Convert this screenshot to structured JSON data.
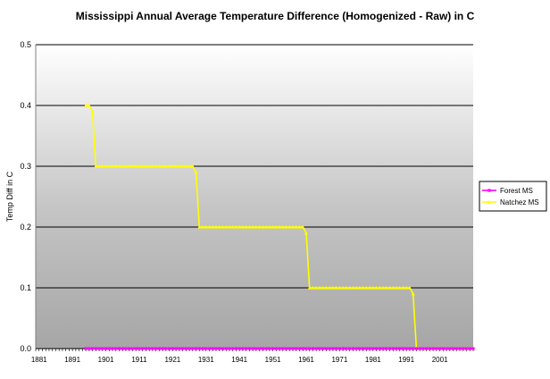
{
  "chart_data": {
    "type": "line",
    "title": "Mississippi Annual Average Temperature Difference (Homogenized - Raw) in C",
    "xlabel": "",
    "ylabel": "Temp Diff in C",
    "xlim": [
      1880,
      2011
    ],
    "ylim": [
      0,
      0.5
    ],
    "yticks": [
      0.0,
      0.1,
      0.2,
      0.3,
      0.4,
      0.5
    ],
    "ytick_labels": [
      "0.0",
      "0.1",
      "0.2",
      "0.3",
      "0.4",
      "0.5"
    ],
    "xtick_labels": [
      "1881",
      "1891",
      "1901",
      "1911",
      "1921",
      "1931",
      "1941",
      "1951",
      "1961",
      "1971",
      "1981",
      "1991",
      "2001"
    ],
    "grid": "horizontal",
    "legend_position": "right",
    "plot_background": "gradient-gray",
    "series": [
      {
        "name": "Forest MS",
        "color": "#ff00ff",
        "marker": "square",
        "segments": [
          {
            "x_start": 1895,
            "x_end": 2011,
            "y": 0.0
          }
        ]
      },
      {
        "name": "Natchez MS",
        "color": "#ffff00",
        "marker": "triangle",
        "segments": [
          {
            "x_start": 1895,
            "x_end": 1896,
            "y": 0.4
          },
          {
            "x_start": 1898,
            "x_end": 1927,
            "y": 0.3
          },
          {
            "x_start": 1929,
            "x_end": 1960,
            "y": 0.2
          },
          {
            "x_start": 1962,
            "x_end": 1992,
            "y": 0.1
          },
          {
            "x_start": 1994,
            "x_end": 2011,
            "y": 0.0
          }
        ],
        "transitions": [
          {
            "x": 1897,
            "y": 0.39
          },
          {
            "x": 1928,
            "y": 0.29
          },
          {
            "x": 1961,
            "y": 0.19
          },
          {
            "x": 1993,
            "y": 0.09
          }
        ]
      }
    ]
  }
}
